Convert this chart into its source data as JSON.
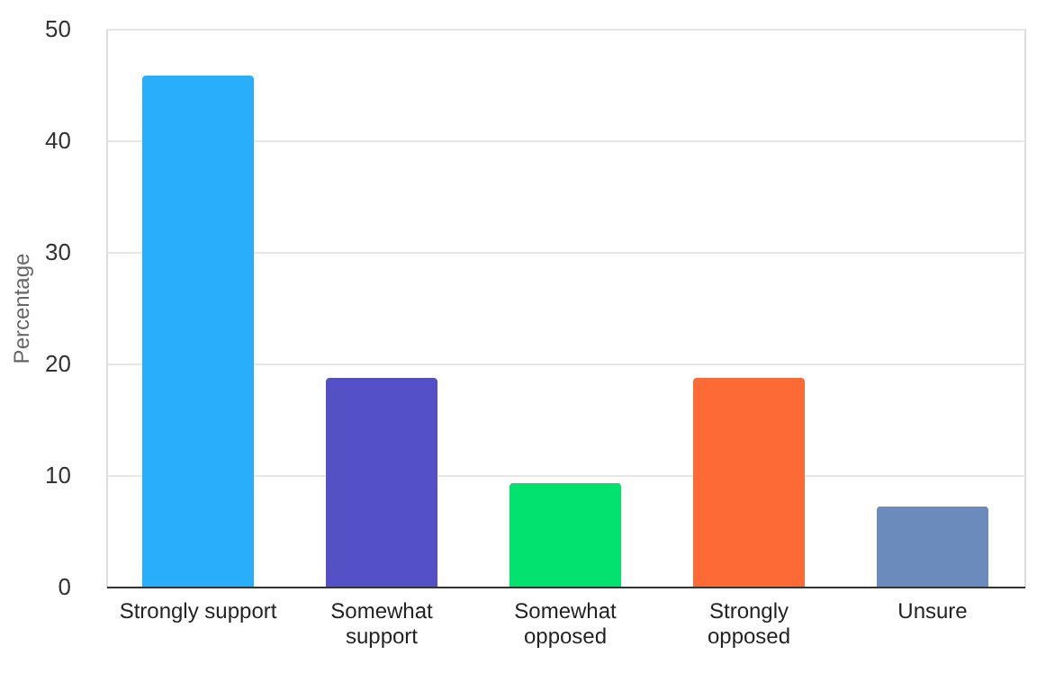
{
  "chart_data": {
    "type": "bar",
    "ylabel": "Percentage",
    "categories": [
      "Strongly support",
      "Somewhat support",
      "Somewhat opposed",
      "Strongly opposed",
      "Unsure"
    ],
    "values": [
      45.8,
      18.7,
      9.3,
      18.7,
      7.2
    ],
    "colors": [
      "#29aefc",
      "#5450c6",
      "#02e26f",
      "#fe6a35",
      "#6a8bbb"
    ],
    "ylim": [
      0,
      50
    ],
    "yticks": [
      0,
      10,
      20,
      30,
      40,
      50
    ],
    "grid": "y"
  }
}
